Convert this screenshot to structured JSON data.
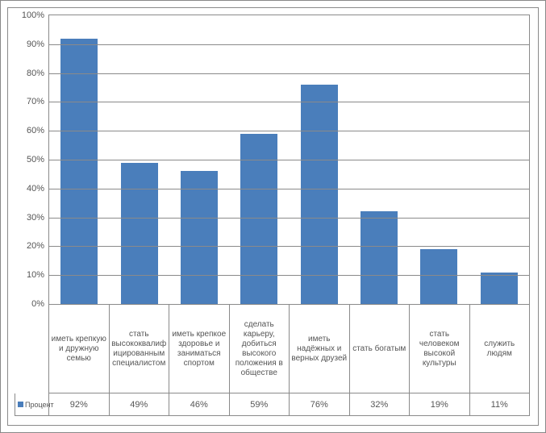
{
  "chart": {
    "type": "bar",
    "series_name": "Процент",
    "bar_color": "#4a7ebb",
    "background_color": "#ffffff",
    "border_color": "#8a8a8a",
    "grid_color": "#8a8a8a",
    "text_color": "#555555",
    "label_fontsize": 11,
    "category_fontsize": 10,
    "ylim": [
      0,
      100
    ],
    "ytick_step": 10,
    "yticks": [
      {
        "v": 0,
        "label": "0%"
      },
      {
        "v": 10,
        "label": "10%"
      },
      {
        "v": 20,
        "label": "20%"
      },
      {
        "v": 30,
        "label": "30%"
      },
      {
        "v": 40,
        "label": "40%"
      },
      {
        "v": 50,
        "label": "50%"
      },
      {
        "v": 60,
        "label": "60%"
      },
      {
        "v": 70,
        "label": "70%"
      },
      {
        "v": 80,
        "label": "80%"
      },
      {
        "v": 90,
        "label": "90%"
      },
      {
        "v": 100,
        "label": "100%"
      }
    ],
    "categories": [
      "иметь крепкую и дружную семью",
      "стать высококвалифицированным специалистом",
      "иметь крепкое здоровье и заниматься спортом",
      "сделать карьеру, добиться высокого положения в обществе",
      "иметь надёжных и верных друзей",
      "стать богатым",
      "стать человеком высокой культуры",
      "служить людям"
    ],
    "values": [
      92,
      49,
      46,
      59,
      76,
      32,
      19,
      11
    ],
    "value_labels": [
      "92%",
      "49%",
      "46%",
      "59%",
      "76%",
      "32%",
      "19%",
      "11%"
    ],
    "bar_width": 0.62
  }
}
